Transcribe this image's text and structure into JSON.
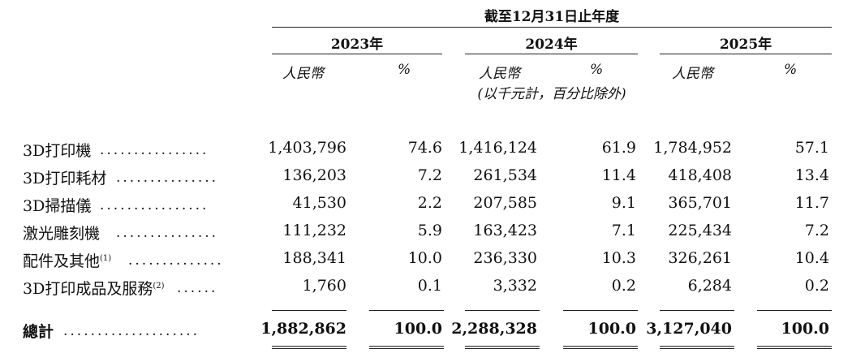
{
  "header": {
    "period": "截至12月31日止年度",
    "years": [
      "2023年",
      "2024年",
      "2025年"
    ],
    "currency_label": "人民幣",
    "percent_label": "%",
    "unit_note": "(以千元計，百分比除外)"
  },
  "rows": [
    {
      "label": "3D打印機",
      "footnote": "",
      "dots": "................",
      "v2023": "1,403,796",
      "p2023": "74.6",
      "v2024": "1,416,124",
      "p2024": "61.9",
      "v2025": "1,784,952",
      "p2025": "57.1"
    },
    {
      "label": "3D打印耗材",
      "footnote": "",
      "dots": "...............",
      "v2023": "136,203",
      "p2023": "7.2",
      "v2024": "261,534",
      "p2024": "11.4",
      "v2025": "418,408",
      "p2025": "13.4"
    },
    {
      "label": "3D掃描儀",
      "footnote": "",
      "dots": "................",
      "v2023": "41,530",
      "p2023": "2.2",
      "v2024": "207,585",
      "p2024": "9.1",
      "v2025": "365,701",
      "p2025": "11.7"
    },
    {
      "label": "激光雕刻機",
      "footnote": "",
      "dots": "...............",
      "v2023": "111,232",
      "p2023": "5.9",
      "v2024": "163,423",
      "p2024": "7.1",
      "v2025": "225,434",
      "p2025": "7.2"
    },
    {
      "label": "配件及其他",
      "footnote": "(1)",
      "dots": "..............",
      "v2023": "188,341",
      "p2023": "10.0",
      "v2024": "236,330",
      "p2024": "10.3",
      "v2025": "326,261",
      "p2025": "10.4"
    },
    {
      "label": "3D打印成品及服務",
      "footnote": "(2)",
      "dots": "......",
      "v2023": "1,760",
      "p2023": "0.1",
      "v2024": "3,332",
      "p2024": "0.2",
      "v2025": "6,284",
      "p2025": "0.2"
    }
  ],
  "total": {
    "label": "總計",
    "dots": "....................",
    "v2023": "1,882,862",
    "p2023": "100.0",
    "v2024": "2,288,328",
    "p2024": "100.0",
    "v2025": "3,127,040",
    "p2025": "100.0"
  }
}
